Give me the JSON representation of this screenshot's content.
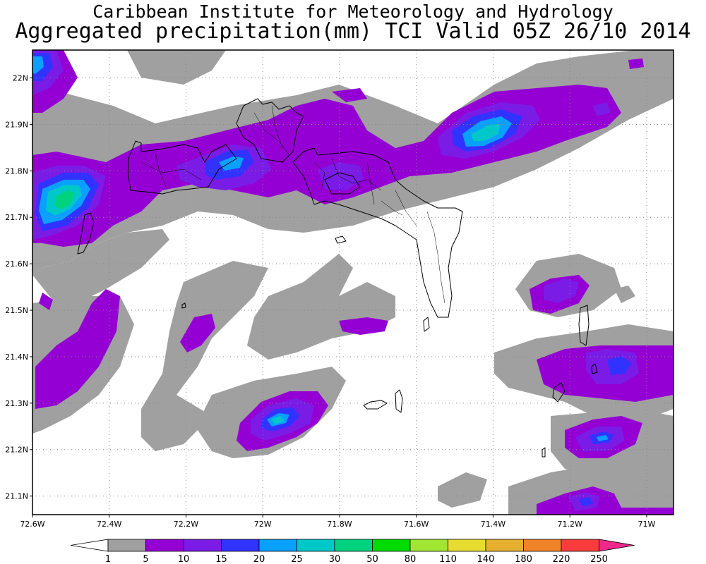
{
  "title": {
    "line1": "Caribbean Institute for Meteorology and Hydrology",
    "line2": "Aggregated precipitation(mm) TCI Valid 05Z 26/10 2014"
  },
  "map": {
    "lon_range": [
      -72.6,
      -70.93
    ],
    "lat_range": [
      21.06,
      22.06
    ],
    "lat_ticks": [
      22.0,
      21.9,
      21.8,
      21.7,
      21.6,
      21.5,
      21.4,
      21.3,
      21.2,
      21.1
    ],
    "lat_labels": [
      "22N",
      "21.9N",
      "21.8N",
      "21.7N",
      "21.6N",
      "21.5N",
      "21.4N",
      "21.3N",
      "21.2N",
      "21.1N"
    ],
    "lon_ticks": [
      -72.6,
      -72.4,
      -72.2,
      -72.0,
      -71.8,
      -71.6,
      -71.4,
      -71.2,
      -71.0
    ],
    "lon_labels": [
      "72.6W",
      "72.4W",
      "72.2W",
      "72W",
      "71.8W",
      "71.6W",
      "71.4W",
      "71.2W",
      "71W"
    ],
    "gridlines": "dotted"
  },
  "colorbar": {
    "labels": [
      "1",
      "5",
      "10",
      "15",
      "20",
      "25",
      "30",
      "50",
      "80",
      "110",
      "140",
      "180",
      "220",
      "250"
    ],
    "colors": [
      "#ffffff",
      "#a0a0a0",
      "#9400d3",
      "#7a1be6",
      "#3232ff",
      "#0aa0ff",
      "#00c8c8",
      "#00d27d",
      "#00dc00",
      "#a0e632",
      "#e6dc32",
      "#e6af2d",
      "#f08228",
      "#fa3c3c",
      "#f0288c"
    ]
  },
  "precip_colors": {
    "gray": "#a0a0a0",
    "purple": "#9400d3",
    "violet": "#7a1be6",
    "blue": "#3232ff",
    "cyan": "#0aa0ff",
    "teal": "#00c8c8",
    "green": "#00d27d"
  }
}
